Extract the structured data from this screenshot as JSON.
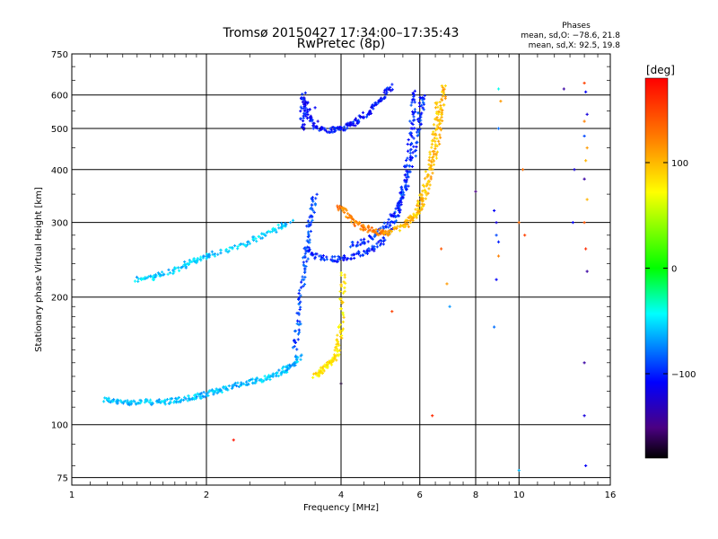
{
  "chart_data": {
    "type": "scatter",
    "title": "Tromsø 20150427 17:34:00–17:35:43",
    "subtitle": "RwPretec (8p)",
    "stats": {
      "heading": "Phases",
      "line1": "mean, sd,O: −78.6, 21.8",
      "line2": "mean, sd,X:  92.5, 19.8"
    },
    "xlabel": "Frequency [MHz]",
    "ylabel": "Stationary phase Virtual Height [km]",
    "x_scale": "log",
    "y_scale": "log",
    "xlim": [
      1,
      16
    ],
    "ylim": [
      72,
      750
    ],
    "x_ticks": [
      1,
      2,
      4,
      6,
      8,
      10,
      16
    ],
    "x_tick_labels": [
      "1",
      "2",
      "4",
      "6",
      "8",
      "10",
      "16"
    ],
    "y_ticks": [
      75,
      100,
      200,
      300,
      400,
      500,
      600,
      750
    ],
    "y_tick_labels": [
      "75",
      "100",
      "200",
      "300",
      "400",
      "500",
      "600",
      "750"
    ],
    "grid": true,
    "colorbar": {
      "label": "[deg]",
      "range": [
        -180,
        180
      ],
      "ticks": [
        100,
        0,
        -100
      ],
      "tick_labels": [
        "100",
        "0",
        "−100"
      ],
      "colors": [
        "#ff0000",
        "#ff8000",
        "#ffff00",
        "#00ff00",
        "#00ffff",
        "#0000ff",
        "#4b0082",
        "#000000"
      ]
    },
    "traces": [
      {
        "name": "",
        "phase": -60,
        "points": [
          [
            1.18,
            115
          ],
          [
            1.25,
            113
          ],
          [
            1.32,
            113
          ],
          [
            1.4,
            113
          ],
          [
            1.5,
            113
          ],
          [
            1.6,
            113
          ],
          [
            1.7,
            114
          ],
          [
            1.8,
            115
          ],
          [
            1.9,
            116
          ],
          [
            2.0,
            118
          ],
          [
            2.1,
            120
          ],
          [
            2.2,
            122
          ],
          [
            2.35,
            124
          ],
          [
            2.5,
            126
          ],
          [
            2.65,
            128
          ],
          [
            2.8,
            130
          ],
          [
            2.95,
            133
          ],
          [
            3.05,
            136
          ],
          [
            3.15,
            140
          ],
          [
            3.25,
            145
          ]
        ]
      },
      {
        "name": "",
        "phase": -55,
        "points": [
          [
            1.4,
            220
          ],
          [
            1.5,
            222
          ],
          [
            1.6,
            227
          ],
          [
            1.75,
            235
          ],
          [
            1.85,
            242
          ],
          [
            1.95,
            247
          ],
          [
            2.05,
            252
          ],
          [
            2.3,
            262
          ],
          [
            2.5,
            270
          ],
          [
            2.7,
            280
          ],
          [
            2.9,
            292
          ],
          [
            3.1,
            300
          ]
        ]
      },
      {
        "name": "",
        "phase": -90,
        "points": [
          [
            3.15,
            150
          ],
          [
            3.2,
            170
          ],
          [
            3.25,
            200
          ],
          [
            3.3,
            230
          ],
          [
            3.35,
            260
          ],
          [
            3.4,
            290
          ],
          [
            3.45,
            320
          ],
          [
            3.5,
            350
          ]
        ]
      },
      {
        "name": "",
        "phase": -105,
        "points": [
          [
            3.28,
            500
          ],
          [
            3.28,
            550
          ],
          [
            3.3,
            600
          ],
          [
            3.35,
            560
          ],
          [
            3.4,
            520
          ],
          [
            3.6,
            498
          ],
          [
            3.8,
            496
          ],
          [
            4.0,
            500
          ],
          [
            4.2,
            510
          ],
          [
            4.4,
            525
          ],
          [
            4.6,
            545
          ],
          [
            4.8,
            570
          ],
          [
            5.0,
            600
          ],
          [
            5.2,
            630
          ]
        ]
      },
      {
        "name": "",
        "phase": -100,
        "points": [
          [
            3.35,
            260
          ],
          [
            3.5,
            250
          ],
          [
            3.8,
            246
          ],
          [
            4.0,
            246
          ],
          [
            4.3,
            250
          ],
          [
            4.6,
            257
          ],
          [
            4.9,
            268
          ],
          [
            5.1,
            285
          ],
          [
            5.3,
            310
          ],
          [
            5.45,
            340
          ],
          [
            5.55,
            380
          ],
          [
            5.65,
            430
          ],
          [
            5.75,
            490
          ],
          [
            5.8,
            550
          ],
          [
            5.85,
            620
          ]
        ]
      },
      {
        "name": "",
        "phase": -95,
        "points": [
          [
            4.2,
            265
          ],
          [
            4.5,
            272
          ],
          [
            4.8,
            282
          ],
          [
            5.1,
            300
          ],
          [
            5.4,
            330
          ],
          [
            5.6,
            370
          ],
          [
            5.8,
            430
          ],
          [
            5.95,
            500
          ],
          [
            6.05,
            560
          ],
          [
            6.1,
            600
          ]
        ]
      },
      {
        "name": "",
        "phase": 80,
        "points": [
          [
            3.5,
            130
          ],
          [
            3.6,
            133
          ],
          [
            3.7,
            137
          ],
          [
            3.8,
            140
          ],
          [
            3.9,
            145
          ],
          [
            3.95,
            155
          ],
          [
            4.0,
            170
          ],
          [
            4.02,
            200
          ],
          [
            4.05,
            230
          ]
        ]
      },
      {
        "name": "",
        "phase": 120,
        "points": [
          [
            3.95,
            330
          ],
          [
            4.1,
            315
          ],
          [
            4.3,
            300
          ],
          [
            4.5,
            292
          ],
          [
            4.7,
            287
          ],
          [
            4.9,
            284
          ],
          [
            5.1,
            286
          ]
        ]
      },
      {
        "name": "",
        "phase": 100,
        "points": [
          [
            5.0,
            282
          ],
          [
            5.4,
            290
          ],
          [
            5.7,
            300
          ],
          [
            6.0,
            320
          ],
          [
            6.2,
            350
          ],
          [
            6.4,
            400
          ],
          [
            6.55,
            460
          ],
          [
            6.65,
            520
          ],
          [
            6.75,
            580
          ],
          [
            6.8,
            630
          ]
        ]
      },
      {
        "name": "",
        "phase": 95,
        "points": [
          [
            5.6,
            300
          ],
          [
            5.9,
            320
          ],
          [
            6.1,
            350
          ],
          [
            6.3,
            400
          ],
          [
            6.45,
            460
          ],
          [
            6.55,
            520
          ],
          [
            6.6,
            580
          ]
        ]
      }
    ],
    "scatter_points": [
      [
        3.5,
        560,
        -110
      ],
      [
        3.55,
        520,
        -120
      ],
      [
        6.4,
        105,
        160
      ],
      [
        9.0,
        620,
        -40
      ],
      [
        9.1,
        580,
        110
      ],
      [
        9.0,
        500,
        -80
      ],
      [
        8.0,
        355,
        -150
      ],
      [
        8.8,
        320,
        -110
      ],
      [
        8.9,
        300,
        -120
      ],
      [
        8.9,
        280,
        -90
      ],
      [
        9.0,
        270,
        -100
      ],
      [
        9.0,
        250,
        120
      ],
      [
        8.9,
        220,
        -110
      ],
      [
        8.8,
        170,
        -80
      ],
      [
        10.0,
        78,
        -60
      ],
      [
        10.2,
        400,
        130
      ],
      [
        10.0,
        300,
        130
      ],
      [
        10.3,
        280,
        150
      ],
      [
        12.6,
        620,
        -140
      ],
      [
        13.2,
        300,
        -110
      ],
      [
        13.3,
        400,
        -120
      ],
      [
        14.0,
        640,
        150
      ],
      [
        14.1,
        610,
        -110
      ],
      [
        14.2,
        540,
        -120
      ],
      [
        14.0,
        520,
        120
      ],
      [
        14.0,
        480,
        -90
      ],
      [
        14.2,
        450,
        110
      ],
      [
        14.1,
        420,
        100
      ],
      [
        14.0,
        380,
        -140
      ],
      [
        14.2,
        340,
        100
      ],
      [
        14.0,
        300,
        140
      ],
      [
        14.1,
        260,
        160
      ],
      [
        14.2,
        230,
        -140
      ],
      [
        14.0,
        105,
        -120
      ],
      [
        14.1,
        80,
        -110
      ],
      [
        14.0,
        140,
        -140
      ],
      [
        2.3,
        92,
        170
      ],
      [
        5.2,
        185,
        150
      ],
      [
        6.9,
        215,
        110
      ],
      [
        7.0,
        190,
        -70
      ],
      [
        6.7,
        260,
        140
      ],
      [
        4.0,
        125,
        -170
      ]
    ]
  }
}
